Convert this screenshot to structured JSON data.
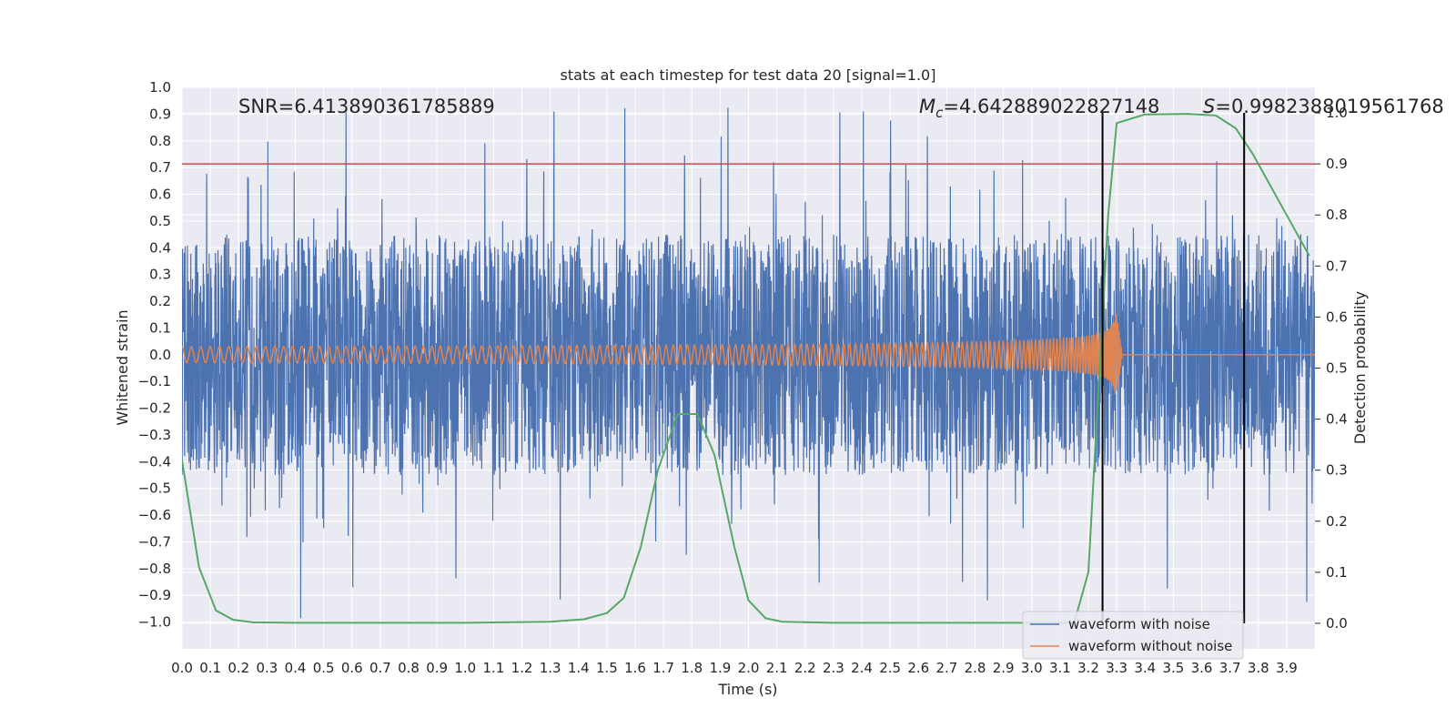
{
  "chart_data": {
    "type": "line",
    "title": "stats at each timestep for test data 20 [signal=1.0]",
    "xlabel": "Time (s)",
    "ylabel": "Whitened strain",
    "ylabel_right": "Detection probability",
    "xlim": [
      0.0,
      4.0
    ],
    "ylim": [
      -1.1,
      1.0
    ],
    "ylim_right": [
      -0.05,
      1.05
    ],
    "x_ticks": [
      "0.0",
      "0.1",
      "0.2",
      "0.3",
      "0.4",
      "0.5",
      "0.6",
      "0.7",
      "0.8",
      "0.9",
      "1.0",
      "1.1",
      "1.2",
      "1.3",
      "1.4",
      "1.5",
      "1.6",
      "1.7",
      "1.8",
      "1.9",
      "2.0",
      "2.1",
      "2.2",
      "2.3",
      "2.4",
      "2.5",
      "2.6",
      "2.7",
      "2.8",
      "2.9",
      "3.0",
      "3.1",
      "3.2",
      "3.3",
      "3.4",
      "3.5",
      "3.6",
      "3.7",
      "3.8",
      "3.9"
    ],
    "y_ticks": [
      "1.0",
      "0.9",
      "0.8",
      "0.7",
      "0.6",
      "0.5",
      "0.4",
      "0.3",
      "0.2",
      "0.1",
      "0.0",
      "−0.1",
      "−0.2",
      "−0.3",
      "−0.4",
      "−0.5",
      "−0.6",
      "−0.7",
      "−0.8",
      "−0.9",
      "−1.0"
    ],
    "y_ticks_right": [
      "0.0",
      "0.1",
      "0.2",
      "0.3",
      "0.4",
      "0.5",
      "0.6",
      "0.7",
      "0.8",
      "0.9",
      "1.0"
    ],
    "annotations": {
      "snr": "SNR=6.413890361785889",
      "mc_symbol": "M",
      "mc_sub": "c",
      "mc_value": "=4.642889022827148",
      "s_symbol": "S",
      "s_value": "=0.9982388019561768"
    },
    "series": [
      {
        "name": "waveform with noise",
        "color": "#4c72b0",
        "envelope": 0.45,
        "peak_max": 0.93,
        "peak_min": -1.0
      },
      {
        "name": "waveform without noise",
        "color": "#dd8452",
        "amplitude_start": 0.03,
        "amplitude_peak": 0.15,
        "merger_time": 3.3,
        "ringdown_end": 3.32
      },
      {
        "name": "detection probability",
        "color": "#55a868",
        "axis": "right",
        "x": [
          0.0,
          0.06,
          0.12,
          0.18,
          0.25,
          0.4,
          1.0,
          1.3,
          1.42,
          1.5,
          1.56,
          1.62,
          1.68,
          1.75,
          1.82,
          1.88,
          1.95,
          2.0,
          2.06,
          2.12,
          2.3,
          2.6,
          3.0,
          3.15,
          3.2,
          3.24,
          3.27,
          3.3,
          3.4,
          3.55,
          3.65,
          3.72,
          3.78,
          3.85,
          3.92,
          3.98
        ],
        "y": [
          0.32,
          0.11,
          0.025,
          0.007,
          0.002,
          0.001,
          0.001,
          0.003,
          0.008,
          0.02,
          0.05,
          0.15,
          0.3,
          0.41,
          0.41,
          0.33,
          0.15,
          0.045,
          0.01,
          0.003,
          0.001,
          0.001,
          0.001,
          0.001,
          0.1,
          0.5,
          0.8,
          0.98,
          0.997,
          0.998,
          0.995,
          0.97,
          0.92,
          0.85,
          0.78,
          0.72
        ]
      }
    ],
    "threshold_line": {
      "value": 0.9,
      "axis": "right",
      "color": "#c44e52"
    },
    "vertical_lines": [
      3.25,
      3.75
    ],
    "legend": [
      "waveform with noise",
      "waveform without noise"
    ],
    "legend_position": "bottom-right",
    "grid": true
  }
}
